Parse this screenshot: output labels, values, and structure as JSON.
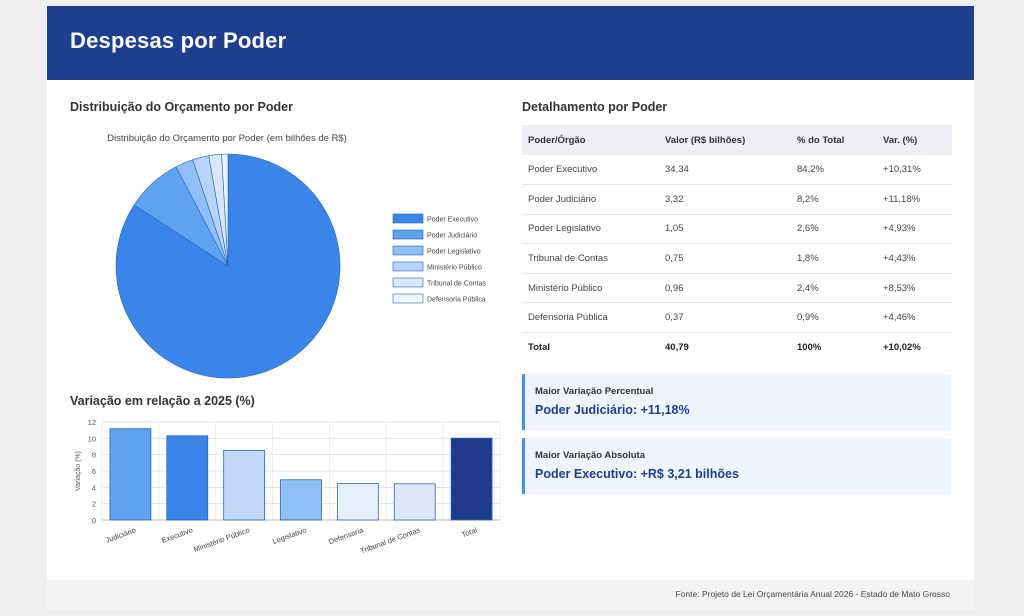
{
  "header": {
    "title": "Despesas por Poder"
  },
  "pie_section": {
    "title": "Distribuição do Orçamento por Poder"
  },
  "bar_section": {
    "title": "Variação em relação a 2025 (%)"
  },
  "table_section": {
    "title": "Detalhamento por Poder",
    "columns": [
      "Poder/Órgão",
      "Valor (R$ bilhões)",
      "% do Total",
      "Var. (%)"
    ],
    "rows": [
      [
        "Poder Executivo",
        "34,34",
        "84,2%",
        "+10,31%"
      ],
      [
        "Poder Judiciário",
        "3,32",
        "8,2%",
        "+11,18%"
      ],
      [
        "Poder Legislativo",
        "1,05",
        "2,6%",
        "+4,93%"
      ],
      [
        "Tribunal de Contas",
        "0,75",
        "1,8%",
        "+4,43%"
      ],
      [
        "Ministério Público",
        "0,96",
        "2,4%",
        "+8,53%"
      ],
      [
        "Defensoria Pública",
        "0,37",
        "0,9%",
        "+4,46%"
      ]
    ],
    "total": [
      "Total",
      "40,79",
      "100%",
      "+10,02%"
    ]
  },
  "cards": [
    {
      "label": "Maior Variação Percentual",
      "value": "Poder Judiciário: +11,18%"
    },
    {
      "label": "Maior Variação Absoluta",
      "value": "Poder Executivo: +R$ 3,21 bilhões"
    }
  ],
  "footer": {
    "source": "Fonte: Projeto de Lei Orçamentária Anual 2026 - Estado de Mato Grosso"
  },
  "chart_data": [
    {
      "type": "pie",
      "title": "Distribuição do Orçamento por Poder (em bilhões de R$)",
      "categories": [
        "Poder Executivo",
        "Poder Judiciário",
        "Poder Legislativo",
        "Ministério Público",
        "Tribunal de Contas",
        "Defensoria Pública"
      ],
      "values": [
        34.34,
        3.32,
        1.05,
        0.96,
        0.75,
        0.37
      ],
      "colors": [
        "#3a86e8",
        "#5fa2f0",
        "#8fbff5",
        "#b7d4f8",
        "#d7e6fb",
        "#eef5fd"
      ],
      "legend": "right"
    },
    {
      "type": "bar",
      "title": "",
      "categories": [
        "Judiciário",
        "Executivo",
        "Ministério Público",
        "Legislativo",
        "Defensoria",
        "Tribunal de Contas",
        "Total"
      ],
      "values": [
        11.18,
        10.31,
        8.53,
        4.93,
        4.46,
        4.43,
        10.02
      ],
      "colors": [
        "#5fa2f0",
        "#3a86e8",
        "#c2d8f8",
        "#8fbff5",
        "#e6f0fc",
        "#dde9fb",
        "#1e3a8a"
      ],
      "ylabel": "Variação (%)",
      "xlabel": "",
      "ylim": [
        0,
        12
      ],
      "yticks": [
        0,
        2,
        4,
        6,
        8,
        10,
        12
      ],
      "grid": true
    }
  ]
}
